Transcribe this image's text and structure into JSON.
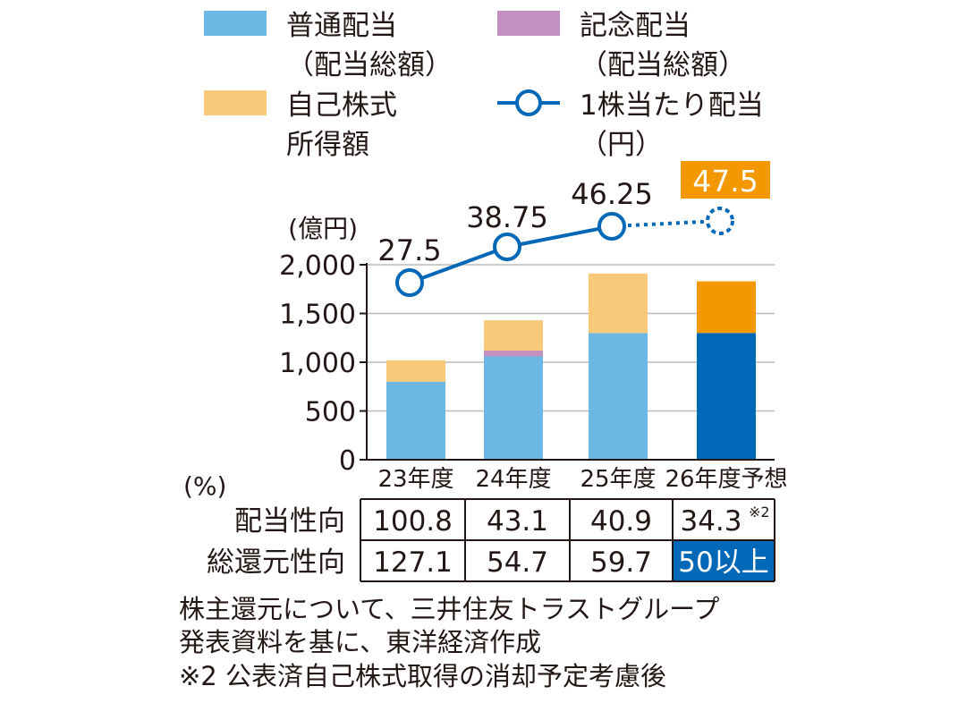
{
  "chart_data": {
    "type": "bar",
    "y_unit": "(億円)",
    "ylim": [
      0,
      2000
    ],
    "y_ticks": [
      "0",
      "500",
      "1,000",
      "1,500",
      "2,000"
    ],
    "grid": true,
    "categories": [
      "23年度",
      "24年度",
      "25年度",
      "26年度予想"
    ],
    "series": [
      {
        "name": "普通配当（配当総額）",
        "color": "#6cb8e4",
        "forecast_color": "#0068b7",
        "values": [
          800,
          1060,
          1300,
          1300
        ]
      },
      {
        "name": "記念配当（配当総額）",
        "color": "#c48fc1",
        "values": [
          0,
          60,
          0,
          0
        ]
      },
      {
        "name": "自己株式所得額",
        "color": "#f8c978",
        "forecast_color": "#f39800",
        "values": [
          220,
          310,
          610,
          530
        ]
      }
    ],
    "dividend_per_share": {
      "name": "1株当たり配当（円）",
      "color": "#0068b7",
      "values": [
        27.5,
        38.75,
        46.25,
        47.5
      ],
      "labels": [
        "27.5",
        "38.75",
        "46.25",
        "47.5"
      ],
      "forecast_highlight_color": "#f39800"
    },
    "legend": {
      "placement": "top",
      "items": [
        {
          "lines": [
            "普通配当",
            "（配当総額）"
          ],
          "color": "#6cb8e4",
          "kind": "box"
        },
        {
          "lines": [
            "記念配当",
            "（配当総額）"
          ],
          "color": "#c48fc1",
          "kind": "box"
        },
        {
          "lines": [
            "自己株式",
            "所得額"
          ],
          "color": "#f8c978",
          "kind": "box"
        },
        {
          "lines": [
            "1株当たり配当",
            "（円）"
          ],
          "color": "#0068b7",
          "kind": "line-marker"
        }
      ]
    },
    "table": {
      "unit": "(%)",
      "rows": [
        {
          "label": "配当性向",
          "values": [
            "100.8",
            "43.1",
            "40.9",
            "34.3"
          ],
          "note_mark": "※2"
        },
        {
          "label": "総還元性向",
          "values": [
            "127.1",
            "54.7",
            "59.7",
            "50以上"
          ]
        }
      ],
      "highlight_color": "#0068b7"
    }
  },
  "notes": [
    "株主還元について、三井住友トラストグループ",
    "発表資料を基に、東洋経済作成",
    "※2 公表済自己株式取得の消却予定考慮後"
  ]
}
